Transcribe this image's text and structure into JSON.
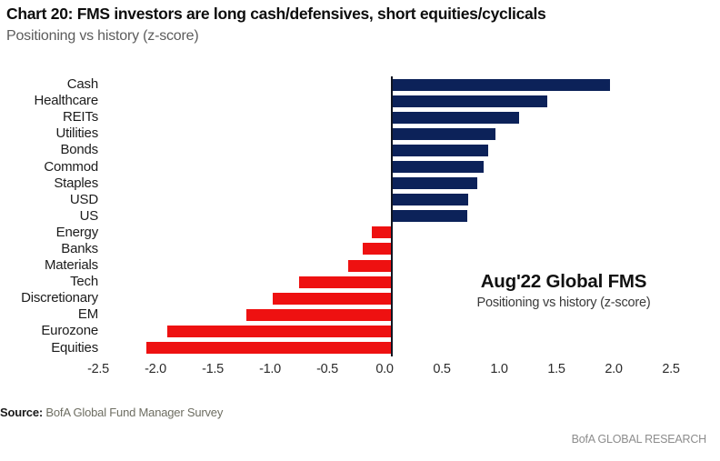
{
  "header": {
    "title": "Chart 20: FMS investors are long cash/defensives, short equities/cyclicals",
    "subtitle": "Positioning vs history (z-score)"
  },
  "chart_data": {
    "type": "bar",
    "orientation": "horizontal",
    "title": "Chart 20: FMS investors are long cash/defensives, short equities/cyclicals",
    "subtitle": "Positioning vs history (z-score)",
    "categories": [
      "Cash",
      "Healthcare",
      "REITs",
      "Utilities",
      "Bonds",
      "Commod",
      "Staples",
      "USD",
      "US",
      "Energy",
      "Banks",
      "Materials",
      "Tech",
      "Discretionary",
      "EM",
      "Eurozone",
      "Equities"
    ],
    "values": [
      1.9,
      1.35,
      1.1,
      0.9,
      0.83,
      0.79,
      0.74,
      0.66,
      0.65,
      -0.18,
      -0.26,
      -0.39,
      -0.82,
      -1.05,
      -1.28,
      -1.97,
      -2.15
    ],
    "xlim": [
      -2.5,
      2.5
    ],
    "xticks": [
      -2.5,
      -2.0,
      -1.5,
      -1.0,
      -0.5,
      0.0,
      0.5,
      1.0,
      1.5,
      2.0,
      2.5
    ],
    "grid": false,
    "legend": false,
    "positive_color": "#0c2259",
    "negative_color": "#ee1111",
    "annotation": {
      "title": "Aug'22 Global FMS",
      "subtitle": "Positioning vs history (z-score)"
    }
  },
  "footer": {
    "source_label": "Source:",
    "source_text": " BofA Global Fund Manager Survey",
    "brand": "BofA GLOBAL RESEARCH"
  }
}
